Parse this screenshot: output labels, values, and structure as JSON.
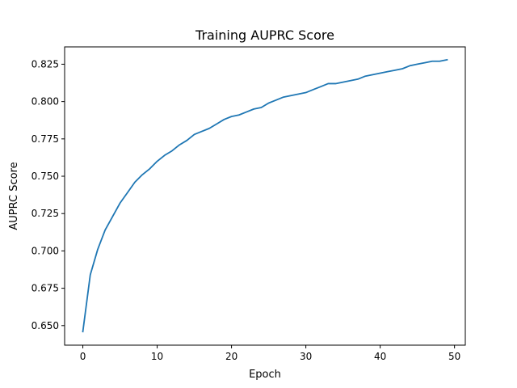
{
  "chart_data": {
    "type": "line",
    "title": "Training AUPRC Score",
    "xlabel": "Epoch",
    "ylabel": "AUPRC Score",
    "xlim": [
      -2.45,
      51.45
    ],
    "ylim": [
      0.6369,
      0.8366
    ],
    "xticks": [
      0,
      10,
      20,
      30,
      40,
      50
    ],
    "yticks": [
      0.65,
      0.675,
      0.7,
      0.725,
      0.75,
      0.775,
      0.8,
      0.825
    ],
    "ytick_labels": [
      "0.650",
      "0.675",
      "0.700",
      "0.725",
      "0.750",
      "0.775",
      "0.800",
      "0.825"
    ],
    "grid": false,
    "line_color": "#1f77b4",
    "series": [
      {
        "x": [
          0,
          1,
          2,
          3,
          4,
          5,
          6,
          7,
          8,
          9,
          10,
          11,
          12,
          13,
          14,
          15,
          16,
          17,
          18,
          19,
          20,
          21,
          22,
          23,
          24,
          25,
          26,
          27,
          28,
          29,
          30,
          31,
          32,
          33,
          34,
          35,
          36,
          37,
          38,
          39,
          40,
          41,
          42,
          43,
          44,
          45,
          46,
          47,
          48,
          49
        ],
        "values": [
          0.646,
          0.684,
          0.701,
          0.714,
          0.723,
          0.732,
          0.739,
          0.746,
          0.751,
          0.755,
          0.76,
          0.764,
          0.767,
          0.771,
          0.774,
          0.778,
          0.78,
          0.782,
          0.785,
          0.788,
          0.79,
          0.791,
          0.793,
          0.795,
          0.796,
          0.799,
          0.801,
          0.803,
          0.804,
          0.805,
          0.806,
          0.808,
          0.81,
          0.812,
          0.812,
          0.813,
          0.814,
          0.815,
          0.817,
          0.818,
          0.819,
          0.82,
          0.821,
          0.822,
          0.824,
          0.825,
          0.826,
          0.827,
          0.827,
          0.828
        ]
      }
    ]
  }
}
